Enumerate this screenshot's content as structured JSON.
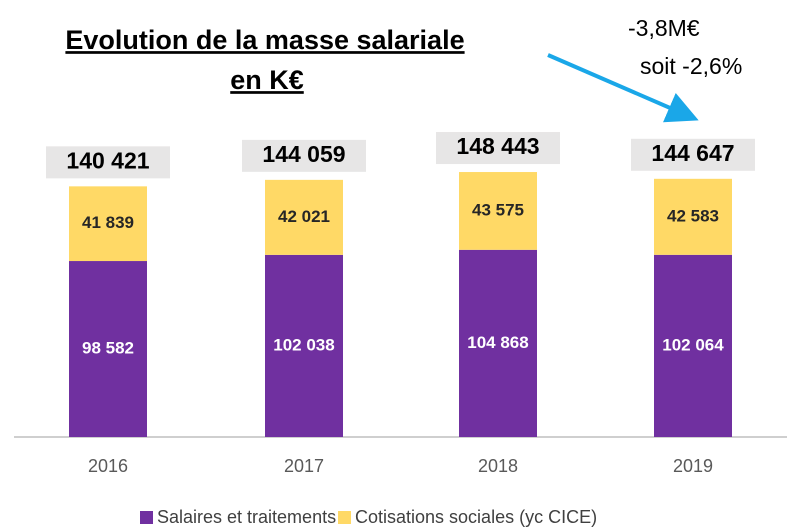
{
  "chart_data": {
    "type": "stacked_bar",
    "title": [
      "Evolution de la masse salariale",
      "en K€"
    ],
    "annotations": [
      "-3,8M€",
      "soit -2,6%"
    ],
    "categories": [
      "2016",
      "2017",
      "2018",
      "2019"
    ],
    "series": [
      {
        "name": "Salaires et traitements",
        "color": "#7030a0",
        "values": [
          98582,
          102038,
          104868,
          102064
        ],
        "value_labels": [
          "98 582",
          "102 038",
          "104 868",
          "102 064"
        ]
      },
      {
        "name": "Cotisations sociales (yc CICE)",
        "color": "#ffd966",
        "values": [
          41839,
          42021,
          43575,
          42583
        ],
        "value_labels": [
          "41 839",
          "42 021",
          "43 575",
          "42 583"
        ]
      }
    ],
    "totals": [
      140421,
      144059,
      148443,
      144647
    ],
    "total_labels": [
      "140 421",
      "144 059",
      "148 443",
      "144 647"
    ]
  }
}
